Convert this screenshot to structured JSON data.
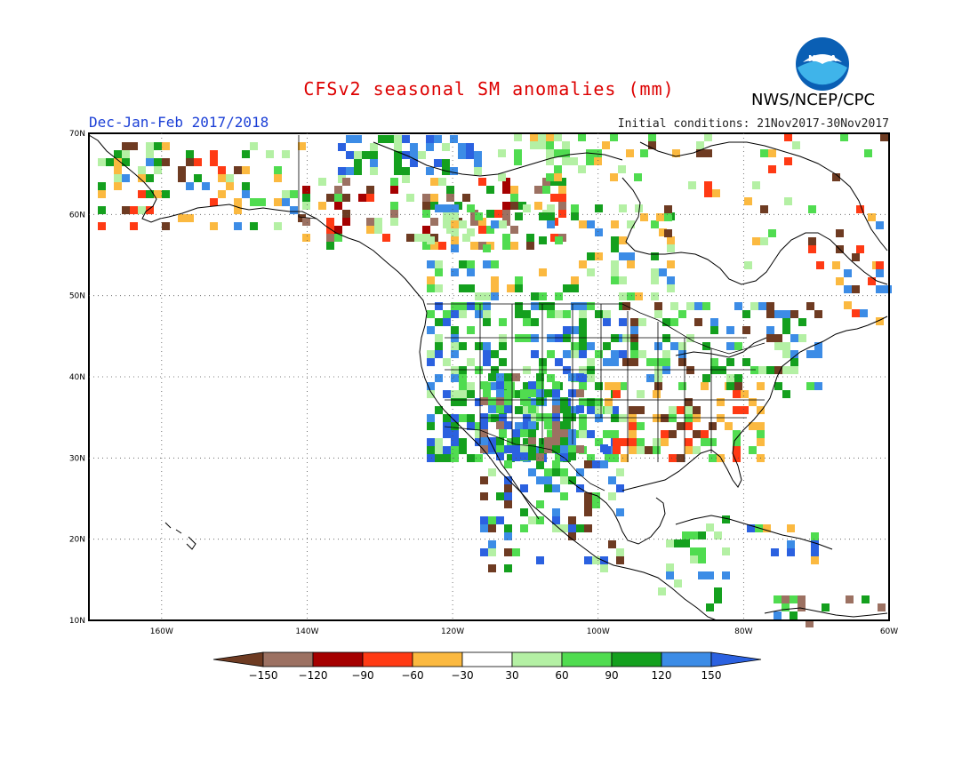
{
  "title": "CFSv2 seasonal SM anomalies (mm)",
  "season_label": "Dec-Jan-Feb 2017/2018",
  "initial_conditions": "Initial conditions: 21Nov2017-30Nov2017",
  "agency": "NWS/NCEP/CPC",
  "logo_text": "NOAA",
  "colors": {
    "title": "#dd0000",
    "season": "#1b3fd6",
    "c_m150": "#6e3b22",
    "c_m120": "#9c7162",
    "c_m90": "#a50000",
    "c_m60": "#ff3a14",
    "c_m30": "#fbb940",
    "c_0": "#ffffff",
    "c_30": "#b4f0a4",
    "c_60": "#50dc50",
    "c_90": "#14a01e",
    "c_120": "#3c8ce6",
    "c_150": "#2b61e0"
  },
  "map": {
    "lat_ticks": [
      "10N",
      "20N",
      "30N",
      "40N",
      "50N",
      "60N",
      "70N"
    ],
    "lon_ticks": [
      "160W",
      "140W",
      "120W",
      "100W",
      "80W",
      "60W"
    ],
    "lat_range": [
      10,
      70
    ],
    "lon_range": [
      -170,
      -60
    ]
  },
  "colorbar": {
    "tick_labels": [
      "-150",
      "-120",
      "-90",
      "-60",
      "-30",
      "30",
      "60",
      "90",
      "120",
      "150"
    ]
  }
}
